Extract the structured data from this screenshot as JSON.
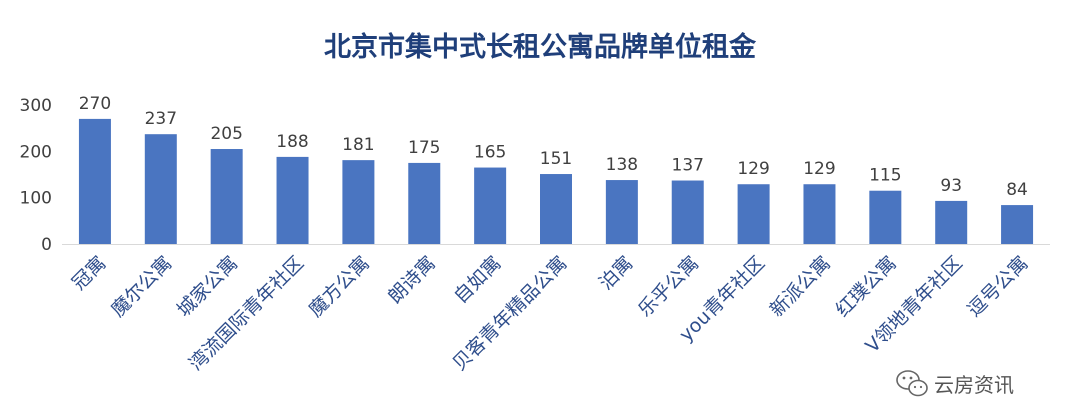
{
  "chart_data": {
    "type": "bar",
    "title": "北京市集中式长租公寓品牌单位租金",
    "xlabel": "",
    "ylabel": "",
    "ylim": [
      0,
      300
    ],
    "yticks": [
      0,
      100,
      200,
      300
    ],
    "grid": false,
    "legend": "none",
    "bar_color": "#4a75c1",
    "categories": [
      "冠寓",
      "魔尔公寓",
      "城家公寓",
      "湾流国际青年社区",
      "魔方公寓",
      "朗诗寓",
      "自如寓",
      "贝客青年精品公寓",
      "泊寓",
      "乐乎公寓",
      "you青年社区",
      "新派公寓",
      "红璞公寓",
      "V领地青年社区",
      "逗号公寓"
    ],
    "values": [
      270,
      237,
      205,
      188,
      181,
      175,
      165,
      151,
      138,
      137,
      129,
      129,
      115,
      93,
      84
    ]
  },
  "watermark": {
    "text": "云房资讯",
    "icon": "wechat-icon"
  }
}
